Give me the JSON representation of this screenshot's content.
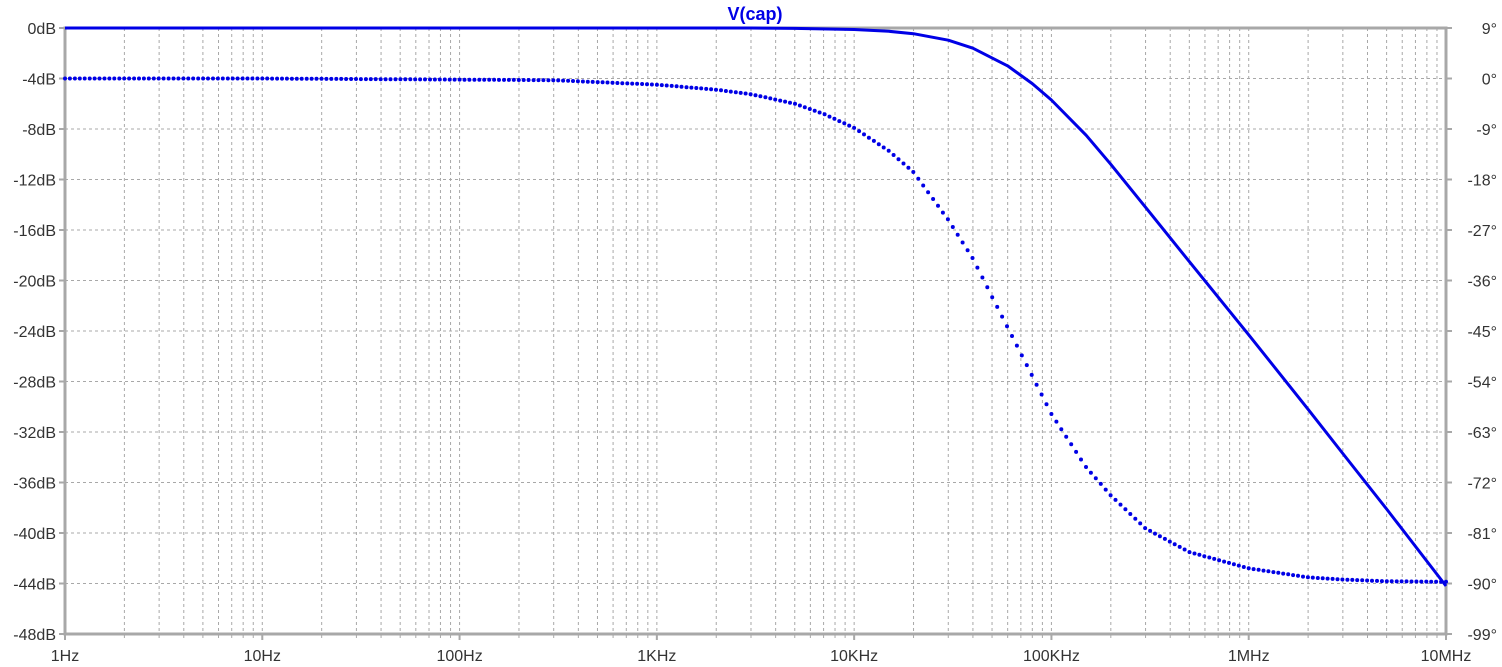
{
  "chart_data": {
    "type": "line",
    "title": "V(cap)",
    "x_scale": "log",
    "xlim": [
      1,
      10000000
    ],
    "x_ticks": [
      {
        "value": 1,
        "label": "1Hz"
      },
      {
        "value": 10,
        "label": "10Hz"
      },
      {
        "value": 100,
        "label": "100Hz"
      },
      {
        "value": 1000,
        "label": "1KHz"
      },
      {
        "value": 10000,
        "label": "10KHz"
      },
      {
        "value": 100000,
        "label": "100KHz"
      },
      {
        "value": 1000000,
        "label": "1MHz"
      },
      {
        "value": 10000000,
        "label": "10MHz"
      }
    ],
    "y_left": {
      "lim": [
        -48,
        0
      ],
      "unit": "dB",
      "ticks": [
        {
          "value": 0,
          "label": "0dB"
        },
        {
          "value": -4,
          "label": "-4dB"
        },
        {
          "value": -8,
          "label": "-8dB"
        },
        {
          "value": -12,
          "label": "-12dB"
        },
        {
          "value": -16,
          "label": "-16dB"
        },
        {
          "value": -20,
          "label": "-20dB"
        },
        {
          "value": -24,
          "label": "-24dB"
        },
        {
          "value": -28,
          "label": "-28dB"
        },
        {
          "value": -32,
          "label": "-32dB"
        },
        {
          "value": -36,
          "label": "-36dB"
        },
        {
          "value": -40,
          "label": "-40dB"
        },
        {
          "value": -44,
          "label": "-44dB"
        },
        {
          "value": -48,
          "label": "-48dB"
        }
      ]
    },
    "y_right": {
      "lim": [
        -99,
        9
      ],
      "unit": "°",
      "ticks": [
        {
          "value": 9,
          "label": "9°"
        },
        {
          "value": 0,
          "label": "0°"
        },
        {
          "value": -9,
          "label": "-9°"
        },
        {
          "value": -18,
          "label": "-18°"
        },
        {
          "value": -27,
          "label": "-27°"
        },
        {
          "value": -36,
          "label": "-36°"
        },
        {
          "value": -45,
          "label": "-45°"
        },
        {
          "value": -54,
          "label": "-54°"
        },
        {
          "value": -63,
          "label": "-63°"
        },
        {
          "value": -72,
          "label": "-72°"
        },
        {
          "value": -81,
          "label": "-81°"
        },
        {
          "value": -90,
          "label": "-90°"
        },
        {
          "value": -99,
          "label": "-99°"
        }
      ]
    },
    "grid": true,
    "series": [
      {
        "axis": "left",
        "style": "solid",
        "color": "#0000e6",
        "x": [
          1,
          10,
          100,
          1000,
          3000,
          5000,
          10000,
          15000,
          20000,
          30000,
          40000,
          60000,
          80000,
          100000,
          150000,
          200000,
          300000,
          500000,
          1000000,
          2000000,
          3000000,
          5000000,
          10000000
        ],
        "values": [
          0,
          0,
          0,
          0,
          0,
          -0.03,
          -0.12,
          -0.26,
          -0.45,
          -0.97,
          -1.6,
          -3.0,
          -4.4,
          -5.7,
          -8.5,
          -10.8,
          -14.2,
          -18.5,
          -24.3,
          -30.2,
          -33.7,
          -38.1,
          -44.2
        ]
      },
      {
        "axis": "right",
        "style": "dotted",
        "color": "#0000e6",
        "x": [
          1,
          10,
          100,
          300,
          1000,
          2000,
          3000,
          5000,
          7000,
          10000,
          15000,
          20000,
          30000,
          40000,
          50000,
          70000,
          100000,
          150000,
          200000,
          300000,
          500000,
          1000000,
          2000000,
          3000000,
          5000000,
          10000000
        ],
        "values": [
          0,
          0,
          -0.2,
          -0.3,
          -1.1,
          -2.0,
          -2.8,
          -4.5,
          -6.3,
          -8.8,
          -12.9,
          -16.7,
          -25.2,
          -32.1,
          -38.9,
          -49.0,
          -59.8,
          -69.3,
          -74.3,
          -80.2,
          -84.4,
          -87.3,
          -88.9,
          -89.3,
          -89.6,
          -89.7
        ]
      }
    ]
  }
}
